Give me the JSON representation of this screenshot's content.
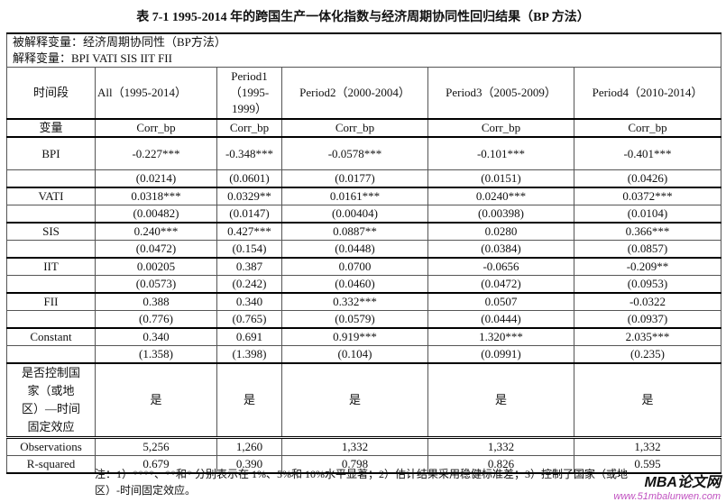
{
  "title": "表 7-1 1995-2014 年的跨国生产一体化指数与经济周期协同性回归结果（BP 方法）",
  "dependent": "被解释变量：经济周期协同性（BP方法）",
  "explanatory": "解释变量：BPI VATI SIS IIT FII",
  "headers": [
    "时间段",
    "All（1995-2014）",
    "Period1（1995-1999）",
    "Period2（2000-2004）",
    "Period3（2005-2009）",
    "Period4（2010-2014）"
  ],
  "var_row": [
    "变量",
    "Corr_bp",
    "Corr_bp",
    "Corr_bp",
    "Corr_bp",
    "Corr_bp"
  ],
  "rows": [
    [
      "BPI",
      "-0.227***",
      "-0.348***",
      "-0.0578***",
      "-0.101***",
      "-0.401***"
    ],
    [
      "",
      "(0.0214)",
      "(0.0601)",
      "(0.0177)",
      "(0.0151)",
      "(0.0426)"
    ],
    [
      "VATI",
      "0.0318***",
      "0.0329**",
      "0.0161***",
      "0.0240***",
      "0.0372***"
    ],
    [
      "",
      "(0.00482)",
      "(0.0147)",
      "(0.00404)",
      "(0.00398)",
      "(0.0104)"
    ],
    [
      "SIS",
      "0.240***",
      "0.427***",
      "0.0887**",
      "0.0280",
      "0.366***"
    ],
    [
      "",
      "(0.0472)",
      "(0.154)",
      "(0.0448)",
      "(0.0384)",
      "(0.0857)"
    ],
    [
      "IIT",
      "0.00205",
      "0.387",
      "0.0700",
      "-0.0656",
      "-0.209**"
    ],
    [
      "",
      "(0.0573)",
      "(0.242)",
      "(0.0460)",
      "(0.0472)",
      "(0.0953)"
    ],
    [
      "FII",
      "0.388",
      "0.340",
      "0.332***",
      "0.0507",
      "-0.0322"
    ],
    [
      "",
      "(0.776)",
      "(0.765)",
      "(0.0579)",
      "(0.0444)",
      "(0.0937)"
    ],
    [
      "Constant",
      "0.340",
      "0.691",
      "0.919***",
      "1.320***",
      "2.035***"
    ],
    [
      "",
      "(1.358)",
      "(1.398)",
      "(0.104)",
      "(0.0991)",
      "(0.235)"
    ]
  ],
  "fe_row": [
    "是否控制国家（或地区）—时间固定效应",
    "是",
    "是",
    "是",
    "是",
    "是"
  ],
  "obs_row": [
    "Observations",
    "5,256",
    "1,260",
    "1,332",
    "1,332",
    "1,332"
  ],
  "r2_row": [
    "R-squared",
    "0.679",
    "0.390",
    "0.798",
    "0.826",
    "0.595"
  ],
  "note": "注：1）****、**和* 分别表示在 1%、5%和 10%水平显著；2）估计结果采用稳健标准差；3）控制了国家（或地区）-时间固定效应。",
  "watermark": {
    "brand": "MBA论文网",
    "url": "www.51mbalunwen.com"
  }
}
